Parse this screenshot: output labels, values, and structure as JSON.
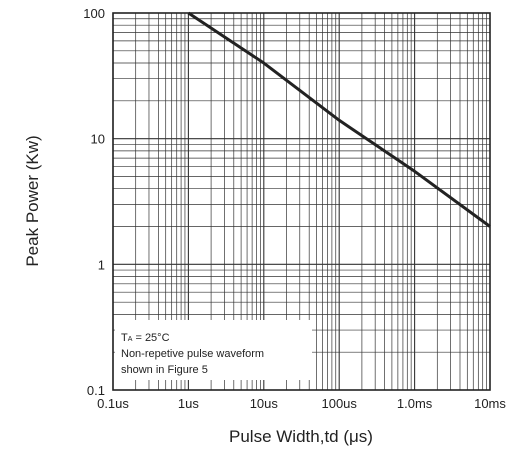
{
  "chart_data": {
    "type": "line",
    "xlabel": "Pulse Width,td (μs)",
    "ylabel": "Peak Power (Kw)",
    "x_scale": "log",
    "y_scale": "log",
    "xlim": [
      0.1,
      10000
    ],
    "ylim": [
      0.1,
      100
    ],
    "x_ticks": [
      {
        "value": 0.1,
        "label": "0.1us"
      },
      {
        "value": 1,
        "label": "1us"
      },
      {
        "value": 10,
        "label": "10us"
      },
      {
        "value": 100,
        "label": "100us"
      },
      {
        "value": 1000,
        "label": "1.0ms"
      },
      {
        "value": 10000,
        "label": "10ms"
      }
    ],
    "y_ticks": [
      {
        "value": 0.1,
        "label": "0.1"
      },
      {
        "value": 1,
        "label": "1"
      },
      {
        "value": 10,
        "label": "10"
      },
      {
        "value": 100,
        "label": "100"
      }
    ],
    "grid": true,
    "series": [
      {
        "x": [
          1,
          10,
          100,
          1000,
          10000
        ],
        "y": [
          100,
          40,
          14,
          5.5,
          2.0
        ],
        "color": "#222222"
      }
    ],
    "annotation": {
      "line1_main": "T",
      "line1_sub": "A",
      "line1_rest": " = 25°C",
      "line2": "Non-repetive pulse waveform",
      "line3": "shown in Figure 5"
    }
  }
}
